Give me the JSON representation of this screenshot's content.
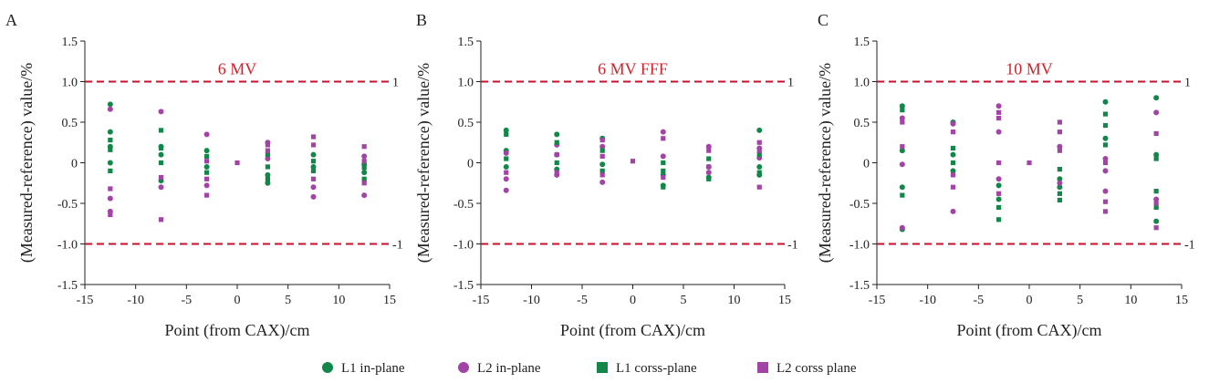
{
  "colors": {
    "green": "#13874a",
    "purple": "#a244a6",
    "limit": "#c8102e"
  },
  "legend": [
    {
      "label": "L1 in-plane",
      "color": "#13874a",
      "marker": "circle"
    },
    {
      "label": "L2 in-plane",
      "color": "#a244a6",
      "marker": "circle"
    },
    {
      "label": "L1 corss-plane",
      "color": "#13874a",
      "marker": "square"
    },
    {
      "label": "L2 corss plane",
      "color": "#a244a6",
      "marker": "square"
    }
  ],
  "chart_data": [
    {
      "type": "scatter",
      "panel": "A",
      "title": "6 MV",
      "xlabel": "Point (from CAX)/cm",
      "ylabel": "(Measured-reference) value/%",
      "xlim": [
        -15,
        15
      ],
      "ylim": [
        -1.5,
        1.5
      ],
      "xticks": [
        -15,
        -10,
        -5,
        0,
        5,
        10,
        15
      ],
      "yticks": [
        "-1.5",
        "-1.0",
        "-0.5",
        "0",
        "0.5",
        "1.0",
        "1.5"
      ],
      "limits": [
        {
          "y": 1,
          "label": "1"
        },
        {
          "y": -1,
          "label": "-1"
        }
      ],
      "series": [
        {
          "name": "L1 in-plane",
          "marker": "circle",
          "color": "#13874a",
          "points": [
            [
              -12.5,
              0.72
            ],
            [
              -12.5,
              0.38
            ],
            [
              -12.5,
              0.2
            ],
            [
              -12.5,
              0.0
            ],
            [
              -7.5,
              0.2
            ],
            [
              -7.5,
              0.1
            ],
            [
              -7.5,
              -0.22
            ],
            [
              -3,
              0.15
            ],
            [
              -3,
              -0.05
            ],
            [
              3,
              -0.15
            ],
            [
              3,
              -0.25
            ],
            [
              7.5,
              0.1
            ],
            [
              7.5,
              -0.05
            ],
            [
              12.5,
              -0.02
            ],
            [
              12.5,
              -0.12
            ]
          ]
        },
        {
          "name": "L2 in-plane",
          "marker": "circle",
          "color": "#a244a6",
          "points": [
            [
              -12.5,
              0.66
            ],
            [
              -12.5,
              -0.44
            ],
            [
              -12.5,
              -0.6
            ],
            [
              -7.5,
              0.63
            ],
            [
              -7.5,
              -0.3
            ],
            [
              -3,
              0.35
            ],
            [
              -3,
              -0.28
            ],
            [
              3,
              0.25
            ],
            [
              3,
              0.05
            ],
            [
              7.5,
              -0.42
            ],
            [
              7.5,
              -0.3
            ],
            [
              12.5,
              -0.4
            ],
            [
              12.5,
              0.08
            ]
          ]
        },
        {
          "name": "L1 corss-plane",
          "marker": "square",
          "color": "#13874a",
          "points": [
            [
              -12.5,
              0.28
            ],
            [
              -12.5,
              0.16
            ],
            [
              -12.5,
              -0.1
            ],
            [
              -7.5,
              0.4
            ],
            [
              -7.5,
              0.18
            ],
            [
              -7.5,
              0.0
            ],
            [
              -3,
              0.08
            ],
            [
              -3,
              -0.12
            ],
            [
              3,
              0.1
            ],
            [
              3,
              -0.05
            ],
            [
              3,
              -0.2
            ],
            [
              7.5,
              0.02
            ],
            [
              7.5,
              -0.1
            ],
            [
              12.5,
              -0.06
            ],
            [
              12.5,
              -0.2
            ]
          ]
        },
        {
          "name": "L2 corss plane",
          "marker": "square",
          "color": "#a244a6",
          "points": [
            [
              -12.5,
              -0.32
            ],
            [
              -12.5,
              -0.64
            ],
            [
              -7.5,
              -0.18
            ],
            [
              -7.5,
              -0.7
            ],
            [
              -3,
              -0.4
            ],
            [
              -3,
              -0.2
            ],
            [
              -3,
              0.02
            ],
            [
              0,
              0.0
            ],
            [
              3,
              0.22
            ],
            [
              3,
              0.15
            ],
            [
              7.5,
              0.32
            ],
            [
              7.5,
              0.22
            ],
            [
              7.5,
              -0.2
            ],
            [
              12.5,
              0.2
            ],
            [
              12.5,
              0.02
            ],
            [
              12.5,
              -0.25
            ]
          ]
        }
      ]
    },
    {
      "type": "scatter",
      "panel": "B",
      "title": "6 MV FFF",
      "xlabel": "Point (from CAX)/cm",
      "ylabel": "(Measured-reference) value/%",
      "xlim": [
        -15,
        15
      ],
      "ylim": [
        -1.5,
        1.5
      ],
      "xticks": [
        -15,
        -10,
        -5,
        0,
        5,
        10,
        15
      ],
      "yticks": [
        "-1.5",
        "-1.0",
        "-0.5",
        "0",
        "0.5",
        "1.0",
        "1.5"
      ],
      "limits": [
        {
          "y": 1,
          "label": "1"
        },
        {
          "y": -1,
          "label": "-1"
        }
      ],
      "series": [
        {
          "name": "L1 in-plane",
          "marker": "circle",
          "color": "#13874a",
          "points": [
            [
              -12.5,
              0.4
            ],
            [
              -12.5,
              0.15
            ],
            [
              -12.5,
              -0.05
            ],
            [
              -7.5,
              0.35
            ],
            [
              -7.5,
              0.1
            ],
            [
              -7.5,
              -0.08
            ],
            [
              -3,
              0.3
            ],
            [
              -3,
              -0.02
            ],
            [
              3,
              -0.15
            ],
            [
              3,
              -0.28
            ],
            [
              7.5,
              -0.05
            ],
            [
              7.5,
              -0.18
            ],
            [
              12.5,
              0.4
            ],
            [
              12.5,
              -0.05
            ],
            [
              12.5,
              -0.15
            ]
          ]
        },
        {
          "name": "L2 in-plane",
          "marker": "circle",
          "color": "#a244a6",
          "points": [
            [
              -12.5,
              0.12
            ],
            [
              -12.5,
              -0.2
            ],
            [
              -12.5,
              -0.34
            ],
            [
              -7.5,
              0.22
            ],
            [
              -7.5,
              -0.15
            ],
            [
              -3,
              0.2
            ],
            [
              -3,
              -0.24
            ],
            [
              3,
              0.38
            ],
            [
              3,
              0.08
            ],
            [
              7.5,
              0.2
            ],
            [
              7.5,
              -0.12
            ],
            [
              12.5,
              0.18
            ],
            [
              12.5,
              0.06
            ]
          ]
        },
        {
          "name": "L1 corss-plane",
          "marker": "square",
          "color": "#13874a",
          "points": [
            [
              -12.5,
              0.35
            ],
            [
              -12.5,
              0.05
            ],
            [
              -7.5,
              0.25
            ],
            [
              -7.5,
              0.0
            ],
            [
              -3,
              0.15
            ],
            [
              -3,
              -0.1
            ],
            [
              3,
              0.0
            ],
            [
              3,
              -0.1
            ],
            [
              3,
              -0.3
            ],
            [
              7.5,
              0.05
            ],
            [
              7.5,
              -0.2
            ],
            [
              12.5,
              0.1
            ],
            [
              12.5,
              -0.12
            ]
          ]
        },
        {
          "name": "L2 corss plane",
          "marker": "square",
          "color": "#a244a6",
          "points": [
            [
              -12.5,
              -0.12
            ],
            [
              -7.5,
              0.1
            ],
            [
              -7.5,
              -0.12
            ],
            [
              -3,
              0.28
            ],
            [
              -3,
              0.08
            ],
            [
              -3,
              -0.15
            ],
            [
              0,
              0.02
            ],
            [
              3,
              0.3
            ],
            [
              3,
              -0.18
            ],
            [
              7.5,
              0.15
            ],
            [
              7.5,
              -0.05
            ],
            [
              12.5,
              0.25
            ],
            [
              12.5,
              0.15
            ],
            [
              12.5,
              -0.3
            ]
          ]
        }
      ]
    },
    {
      "type": "scatter",
      "panel": "C",
      "title": "10 MV",
      "xlabel": "Point (from CAX)/cm",
      "ylabel": "(Measured-reference) value/%",
      "xlim": [
        -15,
        15
      ],
      "ylim": [
        -1.5,
        1.5
      ],
      "xticks": [
        -15,
        -10,
        -5,
        0,
        5,
        10,
        15
      ],
      "yticks": [
        "-1.5",
        "-1.0",
        "-0.5",
        "0",
        "0.5",
        "1.0",
        "1.5"
      ],
      "limits": [
        {
          "y": 1,
          "label": "1"
        },
        {
          "y": -1,
          "label": "-1"
        }
      ],
      "series": [
        {
          "name": "L1 in-plane",
          "marker": "circle",
          "color": "#13874a",
          "points": [
            [
              -12.5,
              0.7
            ],
            [
              -12.5,
              0.15
            ],
            [
              -12.5,
              -0.3
            ],
            [
              -12.5,
              -0.82
            ],
            [
              -7.5,
              0.5
            ],
            [
              -7.5,
              0.1
            ],
            [
              -7.5,
              -0.1
            ],
            [
              -3,
              -0.28
            ],
            [
              -3,
              -0.45
            ],
            [
              3,
              -0.2
            ],
            [
              3,
              -0.3
            ],
            [
              7.5,
              0.75
            ],
            [
              7.5,
              0.3
            ],
            [
              12.5,
              0.8
            ],
            [
              12.5,
              0.1
            ],
            [
              12.5,
              -0.72
            ]
          ]
        },
        {
          "name": "L2 in-plane",
          "marker": "circle",
          "color": "#a244a6",
          "points": [
            [
              -12.5,
              0.55
            ],
            [
              -12.5,
              -0.02
            ],
            [
              -12.5,
              -0.8
            ],
            [
              -7.5,
              0.48
            ],
            [
              -7.5,
              -0.6
            ],
            [
              -3,
              0.7
            ],
            [
              -3,
              0.38
            ],
            [
              -3,
              -0.2
            ],
            [
              3,
              0.2
            ],
            [
              3,
              -0.25
            ],
            [
              7.5,
              0.05
            ],
            [
              7.5,
              -0.1
            ],
            [
              7.5,
              -0.35
            ],
            [
              12.5,
              0.62
            ],
            [
              12.5,
              -0.45
            ]
          ]
        },
        {
          "name": "L1 corss-plane",
          "marker": "square",
          "color": "#13874a",
          "points": [
            [
              -12.5,
              0.65
            ],
            [
              -12.5,
              -0.4
            ],
            [
              -7.5,
              0.18
            ],
            [
              -7.5,
              0.0
            ],
            [
              -3,
              -0.55
            ],
            [
              -3,
              -0.7
            ],
            [
              3,
              -0.08
            ],
            [
              3,
              -0.38
            ],
            [
              3,
              -0.46
            ],
            [
              7.5,
              0.6
            ],
            [
              7.5,
              0.46
            ],
            [
              7.5,
              0.22
            ],
            [
              12.5,
              0.05
            ],
            [
              12.5,
              -0.35
            ],
            [
              12.5,
              -0.55
            ]
          ]
        },
        {
          "name": "L2 corss plane",
          "marker": "square",
          "color": "#a244a6",
          "points": [
            [
              -12.5,
              0.5
            ],
            [
              -12.5,
              0.2
            ],
            [
              -7.5,
              0.38
            ],
            [
              -7.5,
              -0.15
            ],
            [
              -7.5,
              -0.3
            ],
            [
              -3,
              0.62
            ],
            [
              -3,
              0.55
            ],
            [
              -3,
              0.0
            ],
            [
              -3,
              -0.38
            ],
            [
              0,
              0.0
            ],
            [
              3,
              0.5
            ],
            [
              3,
              0.38
            ],
            [
              3,
              0.15
            ],
            [
              7.5,
              0.0
            ],
            [
              7.5,
              -0.48
            ],
            [
              7.5,
              -0.6
            ],
            [
              12.5,
              0.36
            ],
            [
              12.5,
              -0.5
            ],
            [
              12.5,
              -0.8
            ]
          ]
        }
      ]
    }
  ]
}
